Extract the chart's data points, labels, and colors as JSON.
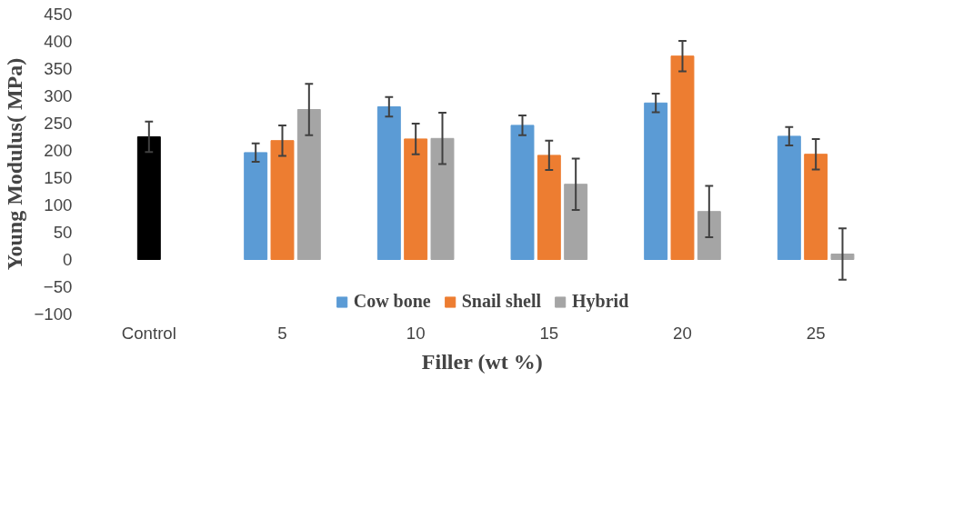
{
  "chart_data": {
    "type": "bar",
    "xlabel": "Filler (wt %)",
    "ylabel": "Young Modulus( MPa)",
    "categories": [
      "Control",
      "5",
      "10",
      "15",
      "20",
      "25"
    ],
    "ylim": [
      -100,
      450
    ],
    "yticks": [
      -100,
      -50,
      0,
      50,
      100,
      150,
      200,
      250,
      300,
      350,
      400,
      450
    ],
    "grid": false,
    "legend": "bottom",
    "series": [
      {
        "color": "#000000",
        "values": [
          225,
          null,
          null,
          null,
          null,
          null
        ],
        "errors": [
          28,
          null,
          null,
          null,
          null,
          null
        ]
      },
      {
        "name": "Cow bone",
        "color": "#5b9bd5",
        "values": [
          null,
          196,
          280,
          246,
          287,
          226
        ],
        "errors": [
          null,
          17,
          18,
          18,
          17,
          17
        ]
      },
      {
        "name": "Snail shell",
        "color": "#ed7d31",
        "values": [
          null,
          218,
          221,
          191,
          373,
          193
        ],
        "errors": [
          null,
          28,
          28,
          27,
          28,
          28
        ]
      },
      {
        "name": "Hybrid",
        "color": "#a5a5a5",
        "values": [
          null,
          275,
          222,
          138,
          88,
          10
        ],
        "errors": [
          null,
          47,
          47,
          47,
          47,
          47
        ]
      }
    ]
  }
}
